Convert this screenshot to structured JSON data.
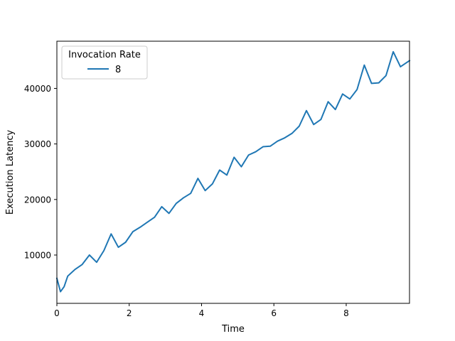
{
  "chart_data": {
    "type": "line",
    "title": "",
    "xlabel": "Time",
    "ylabel": "Execution Latency",
    "xlim": [
      0,
      9.75
    ],
    "ylim": [
      1300,
      48500
    ],
    "xticks": [
      0,
      2,
      4,
      6,
      8
    ],
    "xtick_labels": [
      "0",
      "2",
      "4",
      "6",
      "8"
    ],
    "yticks": [
      10000,
      20000,
      30000,
      40000
    ],
    "ytick_labels": [
      "10000",
      "20000",
      "30000",
      "40000"
    ],
    "grid": false,
    "legend": {
      "title": "Invocation Rate",
      "placement": "upper-left",
      "entries": [
        "8"
      ]
    },
    "colors": {
      "series": "#1f77b4",
      "axes": "#000000"
    },
    "series": [
      {
        "name": "8",
        "x": [
          0.0,
          0.1,
          0.2,
          0.3,
          0.5,
          0.7,
          0.9,
          1.1,
          1.3,
          1.5,
          1.7,
          1.9,
          2.1,
          2.3,
          2.5,
          2.7,
          2.9,
          3.1,
          3.3,
          3.5,
          3.7,
          3.9,
          4.1,
          4.3,
          4.5,
          4.7,
          4.9,
          5.1,
          5.3,
          5.5,
          5.7,
          5.9,
          6.1,
          6.3,
          6.5,
          6.7,
          6.9,
          7.1,
          7.3,
          7.5,
          7.7,
          7.9,
          8.1,
          8.3,
          8.5,
          8.7,
          8.9,
          9.1,
          9.3,
          9.5,
          9.75
        ],
        "y": [
          5800,
          3400,
          4300,
          6200,
          7400,
          8300,
          10000,
          8700,
          10800,
          13800,
          11400,
          12300,
          14200,
          15000,
          15900,
          16800,
          18700,
          17500,
          19300,
          20300,
          21100,
          23800,
          21600,
          22800,
          25300,
          24400,
          27600,
          25900,
          28000,
          28600,
          29500,
          29600,
          30500,
          31100,
          31900,
          33200,
          36000,
          33500,
          34400,
          37600,
          36200,
          39000,
          38100,
          39800,
          44200,
          40900,
          41000,
          42300,
          46600,
          43900,
          45000
        ]
      }
    ]
  }
}
